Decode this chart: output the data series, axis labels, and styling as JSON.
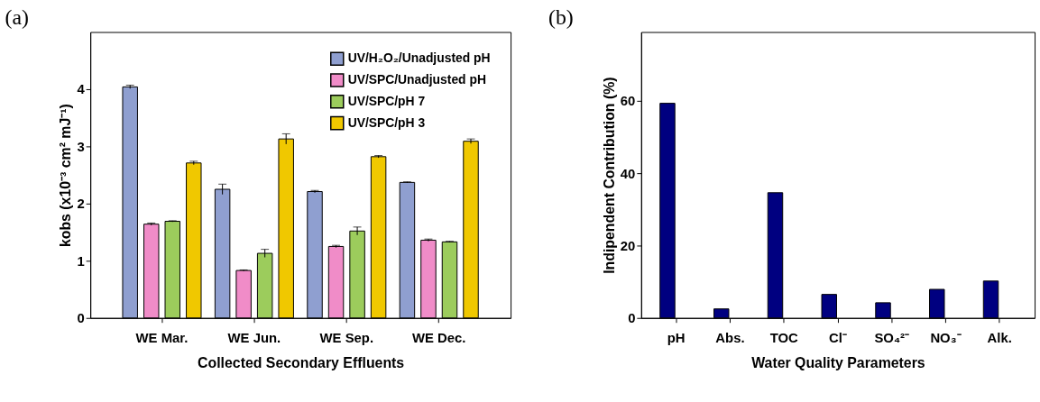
{
  "chart_data": [
    {
      "type": "bar",
      "title": "(a)",
      "xlabel": "Collected Secondary Effluents",
      "ylabel": "kobs (x10⁻³ cm² mJ⁻¹)",
      "categories": [
        "WE Mar.",
        "WE Jun.",
        "WE Sep.",
        "WE Dec."
      ],
      "ylim": [
        0,
        5
      ],
      "yticks": [
        0,
        1,
        2,
        3,
        4
      ],
      "grid": false,
      "legend": "top right",
      "series": [
        {
          "name": "UV/H₂O₂/Unadjusted pH",
          "color": "#8f9fd0",
          "values": [
            4.04,
            2.25,
            2.21,
            2.37
          ],
          "errors": [
            0.03,
            0.09,
            0.02,
            0.01
          ]
        },
        {
          "name": "UV/SPC/Unadjusted pH",
          "color": "#f08cc8",
          "values": [
            1.64,
            0.83,
            1.25,
            1.36
          ],
          "errors": [
            0.02,
            0.01,
            0.02,
            0.02
          ]
        },
        {
          "name": "UV/SPC/pH 7",
          "color": "#9ccc5c",
          "values": [
            1.69,
            1.13,
            1.52,
            1.33
          ],
          "errors": [
            0.01,
            0.07,
            0.07,
            0.01
          ]
        },
        {
          "name": "UV/SPC/pH 3",
          "color": "#f0c800",
          "values": [
            2.71,
            3.13,
            2.82,
            3.09
          ],
          "errors": [
            0.03,
            0.09,
            0.02,
            0.04
          ]
        }
      ]
    },
    {
      "type": "bar",
      "title": "(b)",
      "xlabel": "Water Quality Parameters",
      "ylabel": "Indipendent Contribution (%)",
      "categories": [
        "pH",
        "Abs.",
        "TOC",
        "Cl⁻",
        "SO₄²⁻",
        "NO₃⁻",
        "Alk."
      ],
      "ylim": [
        0,
        79
      ],
      "yticks": [
        0,
        20,
        40,
        60
      ],
      "grid": false,
      "legend": false,
      "series": [
        {
          "color": "#000080",
          "values": [
            59.3,
            2.5,
            34.6,
            6.5,
            4.2,
            7.9,
            10.2
          ]
        }
      ]
    }
  ]
}
